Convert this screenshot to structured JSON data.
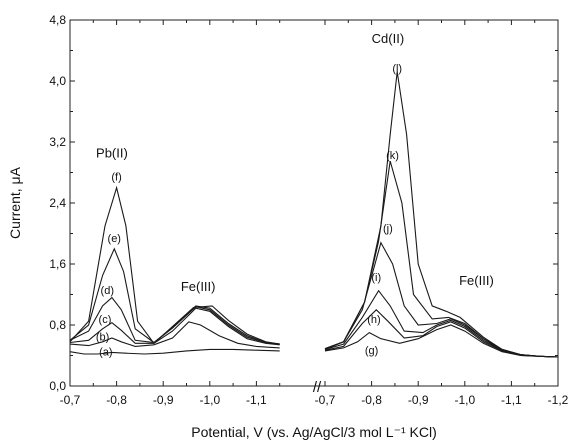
{
  "chart_data": {
    "type": "line",
    "xlabel": "Potential, V (vs. Ag/AgCl/3 mol L⁻¹ KCl)",
    "ylabel": "Current, μA",
    "ylim": [
      0,
      4.8
    ],
    "y_ticks": [
      "0,0",
      "0,8",
      "1,6",
      "2,4",
      "3,2",
      "4,0",
      "4,8"
    ],
    "axis_break": "//",
    "panels": [
      {
        "xlim": [
          -0.7,
          -1.2
        ],
        "x_ticks": [
          "-0,7",
          "-0,8",
          "-0,9",
          "-1,0",
          "-1,1"
        ],
        "annotations": [
          {
            "text": "Pb(II)",
            "x": -0.79,
            "y": 3.05
          },
          {
            "text": "Fe(III)",
            "x": -0.975,
            "y": 1.3
          }
        ],
        "series": [
          {
            "name": "(a)",
            "label_at": [
              -0.777,
              0.45
            ],
            "points": [
              [
                -0.7,
                0.45
              ],
              [
                -0.73,
                0.42
              ],
              [
                -0.76,
                0.42
              ],
              [
                -0.79,
                0.44
              ],
              [
                -0.82,
                0.43
              ],
              [
                -0.86,
                0.42
              ],
              [
                -0.9,
                0.43
              ],
              [
                -0.95,
                0.46
              ],
              [
                -1.0,
                0.48
              ],
              [
                -1.05,
                0.48
              ],
              [
                -1.1,
                0.47
              ],
              [
                -1.15,
                0.46
              ]
            ]
          },
          {
            "name": "(b)",
            "label_at": [
              -0.77,
              0.65
            ],
            "points": [
              [
                -0.7,
                0.55
              ],
              [
                -0.74,
                0.53
              ],
              [
                -0.77,
                0.58
              ],
              [
                -0.79,
                0.63
              ],
              [
                -0.81,
                0.58
              ],
              [
                -0.84,
                0.52
              ],
              [
                -0.88,
                0.54
              ],
              [
                -0.92,
                0.63
              ],
              [
                -0.955,
                0.84
              ],
              [
                -0.98,
                0.8
              ],
              [
                -1.02,
                0.66
              ],
              [
                -1.06,
                0.56
              ],
              [
                -1.1,
                0.52
              ],
              [
                -1.15,
                0.5
              ]
            ]
          },
          {
            "name": "(c)",
            "label_at": [
              -0.775,
              0.88
            ],
            "points": [
              [
                -0.7,
                0.57
              ],
              [
                -0.74,
                0.6
              ],
              [
                -0.77,
                0.75
              ],
              [
                -0.79,
                0.83
              ],
              [
                -0.81,
                0.73
              ],
              [
                -0.84,
                0.56
              ],
              [
                -0.88,
                0.56
              ],
              [
                -0.92,
                0.72
              ],
              [
                -0.97,
                1.02
              ],
              [
                -1.0,
                0.98
              ],
              [
                -1.04,
                0.78
              ],
              [
                -1.08,
                0.62
              ],
              [
                -1.12,
                0.56
              ],
              [
                -1.15,
                0.54
              ]
            ]
          },
          {
            "name": "(d)",
            "label_at": [
              -0.78,
              1.26
            ],
            "points": [
              [
                -0.7,
                0.6
              ],
              [
                -0.74,
                0.72
              ],
              [
                -0.77,
                1.05
              ],
              [
                -0.79,
                1.16
              ],
              [
                -0.81,
                1.0
              ],
              [
                -0.84,
                0.6
              ],
              [
                -0.88,
                0.57
              ],
              [
                -0.92,
                0.76
              ],
              [
                -0.97,
                1.04
              ],
              [
                -1.0,
                1.0
              ],
              [
                -1.04,
                0.8
              ],
              [
                -1.08,
                0.64
              ],
              [
                -1.12,
                0.57
              ],
              [
                -1.15,
                0.55
              ]
            ]
          },
          {
            "name": "(e)",
            "label_at": [
              -0.795,
              1.94
            ],
            "points": [
              [
                -0.7,
                0.6
              ],
              [
                -0.74,
                0.8
              ],
              [
                -0.77,
                1.45
              ],
              [
                -0.795,
                1.8
              ],
              [
                -0.815,
                1.5
              ],
              [
                -0.84,
                0.75
              ],
              [
                -0.88,
                0.57
              ],
              [
                -0.92,
                0.77
              ],
              [
                -0.97,
                1.05
              ],
              [
                -1.0,
                1.02
              ],
              [
                -1.04,
                0.82
              ],
              [
                -1.08,
                0.66
              ],
              [
                -1.12,
                0.57
              ],
              [
                -1.15,
                0.55
              ]
            ]
          },
          {
            "name": "(f)",
            "label_at": [
              -0.8,
              2.75
            ],
            "points": [
              [
                -0.7,
                0.58
              ],
              [
                -0.74,
                0.85
              ],
              [
                -0.775,
                2.1
              ],
              [
                -0.8,
                2.6
              ],
              [
                -0.82,
                2.1
              ],
              [
                -0.845,
                0.85
              ],
              [
                -0.88,
                0.56
              ],
              [
                -0.92,
                0.78
              ],
              [
                -0.965,
                1.03
              ],
              [
                -1.005,
                1.05
              ],
              [
                -1.04,
                0.86
              ],
              [
                -1.08,
                0.68
              ],
              [
                -1.12,
                0.58
              ],
              [
                -1.15,
                0.55
              ]
            ]
          }
        ]
      },
      {
        "xlim": [
          -0.7,
          -1.2
        ],
        "x_ticks": [
          "-0,7",
          "-0,8",
          "-0,9",
          "-1,0",
          "-1,1",
          "-1,2"
        ],
        "annotations": [
          {
            "text": "Cd(II)",
            "x": -0.835,
            "y": 4.55
          },
          {
            "text": "Fe(III)",
            "x": -1.025,
            "y": 1.38
          }
        ],
        "series": [
          {
            "name": "(g)",
            "label_at": [
              -0.8,
              0.47
            ],
            "points": [
              [
                -0.7,
                0.46
              ],
              [
                -0.74,
                0.5
              ],
              [
                -0.77,
                0.58
              ],
              [
                -0.795,
                0.7
              ],
              [
                -0.82,
                0.62
              ],
              [
                -0.86,
                0.56
              ],
              [
                -0.9,
                0.62
              ],
              [
                -0.94,
                0.74
              ],
              [
                -0.97,
                0.8
              ],
              [
                -1.0,
                0.72
              ],
              [
                -1.04,
                0.56
              ],
              [
                -1.08,
                0.45
              ],
              [
                -1.12,
                0.4
              ],
              [
                -1.16,
                0.39
              ],
              [
                -1.2,
                0.38
              ]
            ]
          },
          {
            "name": "(h)",
            "label_at": [
              -0.805,
              0.88
            ],
            "points": [
              [
                -0.7,
                0.47
              ],
              [
                -0.74,
                0.52
              ],
              [
                -0.78,
                0.82
              ],
              [
                -0.81,
                1.0
              ],
              [
                -0.835,
                0.85
              ],
              [
                -0.87,
                0.63
              ],
              [
                -0.91,
                0.66
              ],
              [
                -0.94,
                0.78
              ],
              [
                -0.97,
                0.84
              ],
              [
                -1.0,
                0.76
              ],
              [
                -1.04,
                0.58
              ],
              [
                -1.08,
                0.46
              ],
              [
                -1.12,
                0.4
              ],
              [
                -1.16,
                0.39
              ],
              [
                -1.2,
                0.38
              ]
            ]
          },
          {
            "name": "(i)",
            "label_at": [
              -0.81,
              1.43
            ],
            "points": [
              [
                -0.7,
                0.48
              ],
              [
                -0.74,
                0.55
              ],
              [
                -0.78,
                0.9
              ],
              [
                -0.815,
                1.25
              ],
              [
                -0.84,
                1.05
              ],
              [
                -0.87,
                0.72
              ],
              [
                -0.91,
                0.7
              ],
              [
                -0.94,
                0.8
              ],
              [
                -0.97,
                0.86
              ],
              [
                -1.0,
                0.78
              ],
              [
                -1.04,
                0.6
              ],
              [
                -1.08,
                0.47
              ],
              [
                -1.12,
                0.41
              ],
              [
                -1.16,
                0.39
              ],
              [
                -1.2,
                0.38
              ]
            ]
          },
          {
            "name": "(j)",
            "label_at": [
              -0.835,
              2.07
            ],
            "points": [
              [
                -0.7,
                0.48
              ],
              [
                -0.74,
                0.58
              ],
              [
                -0.78,
                1.0
              ],
              [
                -0.82,
                1.88
              ],
              [
                -0.845,
                1.6
              ],
              [
                -0.87,
                1.05
              ],
              [
                -0.9,
                0.8
              ],
              [
                -0.94,
                0.82
              ],
              [
                -0.97,
                0.88
              ],
              [
                -1.0,
                0.8
              ],
              [
                -1.04,
                0.62
              ],
              [
                -1.08,
                0.47
              ],
              [
                -1.12,
                0.41
              ],
              [
                -1.16,
                0.39
              ],
              [
                -1.2,
                0.38
              ]
            ]
          },
          {
            "name": "(k)",
            "label_at": [
              -0.845,
              3.03
            ],
            "points": [
              [
                -0.7,
                0.49
              ],
              [
                -0.74,
                0.58
              ],
              [
                -0.785,
                1.1
              ],
              [
                -0.815,
                1.9
              ],
              [
                -0.84,
                2.95
              ],
              [
                -0.865,
                2.4
              ],
              [
                -0.89,
                1.2
              ],
              [
                -0.93,
                0.88
              ],
              [
                -0.965,
                0.9
              ],
              [
                -1.0,
                0.82
              ],
              [
                -1.04,
                0.62
              ],
              [
                -1.08,
                0.48
              ],
              [
                -1.12,
                0.41
              ],
              [
                -1.16,
                0.39
              ],
              [
                -1.2,
                0.38
              ]
            ]
          },
          {
            "name": "(l)",
            "label_at": [
              -0.855,
              4.17
            ],
            "points": [
              [
                -0.7,
                0.49
              ],
              [
                -0.74,
                0.58
              ],
              [
                -0.785,
                1.1
              ],
              [
                -0.82,
                2.1
              ],
              [
                -0.84,
                3.3
              ],
              [
                -0.855,
                4.12
              ],
              [
                -0.875,
                3.3
              ],
              [
                -0.9,
                1.6
              ],
              [
                -0.93,
                1.05
              ],
              [
                -0.96,
                0.98
              ],
              [
                -0.99,
                0.9
              ],
              [
                -1.04,
                0.64
              ],
              [
                -1.08,
                0.48
              ],
              [
                -1.12,
                0.41
              ],
              [
                -1.16,
                0.39
              ],
              [
                -1.2,
                0.38
              ]
            ]
          }
        ]
      }
    ]
  }
}
